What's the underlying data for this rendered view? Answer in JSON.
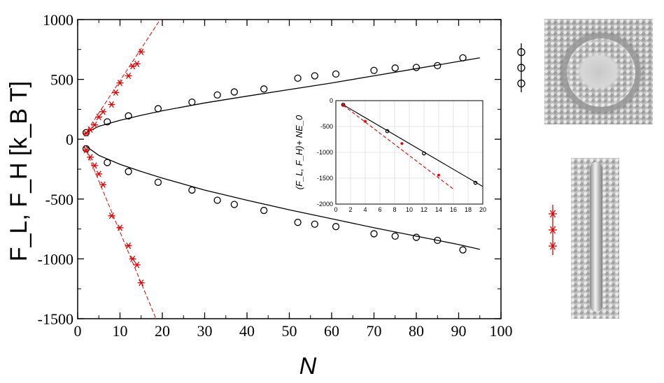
{
  "chart_data": [
    {
      "type": "scatter",
      "xlabel": "N",
      "ylabel": "F_L, F_H [k_B T]",
      "xlim": [
        0,
        100
      ],
      "ylim": [
        -1500,
        1000
      ],
      "x_ticks": [
        "0",
        "10",
        "20",
        "30",
        "40",
        "50",
        "60",
        "70",
        "80",
        "90",
        "100"
      ],
      "y_ticks": [
        "1000",
        "500",
        "0",
        "-500",
        "-1000",
        "-1500"
      ],
      "grid": false,
      "series": [
        {
          "marker": "circle",
          "color": "#000000",
          "points": [
            [
              2,
              55
            ],
            [
              7,
              145
            ],
            [
              12,
              195
            ],
            [
              19,
              255
            ],
            [
              27,
              310
            ],
            [
              33,
              370
            ],
            [
              37,
              395
            ],
            [
              44,
              420
            ],
            [
              52,
              510
            ],
            [
              56,
              530
            ],
            [
              61,
              545
            ],
            [
              70,
              575
            ],
            [
              75,
              595
            ],
            [
              80,
              600
            ],
            [
              85,
              615
            ],
            [
              91,
              680
            ]
          ],
          "fit": [
            [
              2,
              55
            ],
            [
              5,
              108
            ],
            [
              10,
              158
            ],
            [
              15,
              200
            ],
            [
              20,
              238
            ],
            [
              30,
              303
            ],
            [
              40,
              360
            ],
            [
              50,
              415
            ],
            [
              60,
              470
            ],
            [
              70,
              530
            ],
            [
              80,
              590
            ],
            [
              90,
              650
            ],
            [
              95,
              680
            ]
          ]
        },
        {
          "marker": "circle",
          "color": "#000000",
          "points": [
            [
              2,
              -80
            ],
            [
              7,
              -195
            ],
            [
              12,
              -270
            ],
            [
              19,
              -360
            ],
            [
              27,
              -425
            ],
            [
              33,
              -510
            ],
            [
              37,
              -545
            ],
            [
              44,
              -595
            ],
            [
              52,
              -695
            ],
            [
              56,
              -710
            ],
            [
              61,
              -730
            ],
            [
              70,
              -790
            ],
            [
              75,
              -810
            ],
            [
              80,
              -820
            ],
            [
              85,
              -845
            ],
            [
              91,
              -925
            ]
          ],
          "fit": [
            [
              2,
              -60
            ],
            [
              5,
              -135
            ],
            [
              10,
              -210
            ],
            [
              15,
              -270
            ],
            [
              20,
              -325
            ],
            [
              30,
              -425
            ],
            [
              40,
              -510
            ],
            [
              50,
              -590
            ],
            [
              60,
              -665
            ],
            [
              70,
              -740
            ],
            [
              80,
              -810
            ],
            [
              90,
              -880
            ],
            [
              95,
              -920
            ]
          ]
        },
        {
          "marker": "star",
          "color": "#e00000",
          "points": [
            [
              2,
              50
            ],
            [
              3,
              80
            ],
            [
              4,
              120
            ],
            [
              5,
              185
            ],
            [
              6,
              230
            ],
            [
              8,
              290
            ],
            [
              9,
              390
            ],
            [
              10,
              470
            ],
            [
              12,
              530
            ],
            [
              13,
              610
            ],
            [
              14,
              630
            ],
            [
              15,
              730
            ]
          ],
          "fit": [
            [
              1.5,
              30
            ],
            [
              19.5,
              1000
            ]
          ]
        },
        {
          "marker": "star",
          "color": "#e00000",
          "points": [
            [
              2,
              -90
            ],
            [
              3,
              -150
            ],
            [
              4,
              -220
            ],
            [
              5,
              -290
            ],
            [
              6,
              -380
            ],
            [
              8,
              -640
            ],
            [
              10,
              -740
            ],
            [
              12,
              -890
            ],
            [
              13,
              -1000
            ],
            [
              14,
              -1050
            ],
            [
              15,
              -1200
            ]
          ],
          "fit": [
            [
              1.5,
              -50
            ],
            [
              18.5,
              -1500
            ]
          ]
        }
      ]
    },
    {
      "type": "line",
      "xlabel": "",
      "ylabel": "(F_L, F_H)+ NE_0",
      "xlim": [
        0,
        20
      ],
      "ylim": [
        -2000,
        0
      ],
      "x_ticks": [
        "0",
        "2",
        "4",
        "6",
        "8",
        "10",
        "12",
        "14",
        "16",
        "18",
        "20"
      ],
      "y_ticks": [
        "0",
        "-500",
        "-1000",
        "-1500",
        "-2000"
      ],
      "grid": true,
      "series": [
        {
          "color": "#000000",
          "style": "solid",
          "marker": "circle",
          "points": [
            [
              1,
              -80
            ],
            [
              7,
              -590
            ],
            [
              12,
              -1020
            ],
            [
              19,
              -1590
            ]
          ],
          "fit": [
            [
              1,
              -80
            ],
            [
              20,
              -1660
            ]
          ]
        },
        {
          "color": "#e00000",
          "style": "dashed",
          "marker": "star",
          "points": [
            [
              1,
              -90
            ],
            [
              4,
              -400
            ],
            [
              9,
              -830
            ],
            [
              14,
              -1440
            ]
          ],
          "fit": [
            [
              1,
              -90
            ],
            [
              16,
              -1710
            ]
          ]
        }
      ]
    }
  ],
  "legend": [
    {
      "marker": "circle",
      "color": "#000000"
    },
    {
      "marker": "star",
      "color": "#e00000"
    }
  ]
}
